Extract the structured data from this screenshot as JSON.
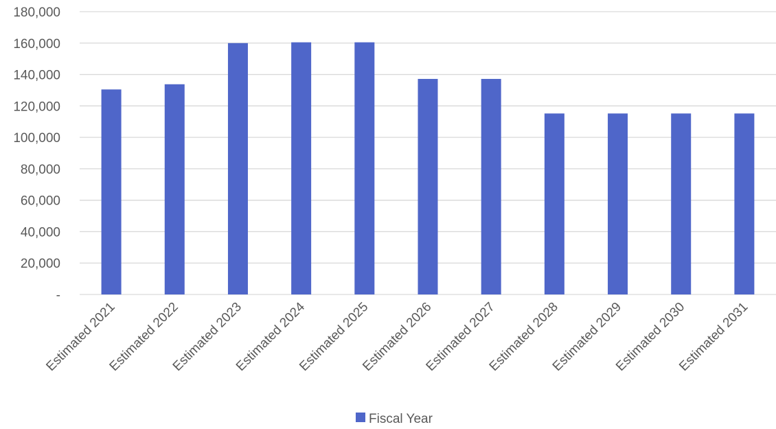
{
  "chart_data": {
    "type": "bar",
    "categories": [
      "Estimated 2021",
      "Estimated 2022",
      "Estimated 2023",
      "Estimated 2024",
      "Estimated 2025",
      "Estimated 2026",
      "Estimated 2027",
      "Estimated 2028",
      "Estimated 2029",
      "Estimated 2030",
      "Estimated 2031"
    ],
    "series": [
      {
        "name": "Fiscal Year",
        "color": "#4f66c9",
        "values": [
          130500,
          133800,
          160000,
          160500,
          160500,
          137200,
          137200,
          115200,
          115200,
          115200,
          115200
        ]
      }
    ],
    "title": "",
    "xlabel": "",
    "ylabel": "",
    "ylim": [
      0,
      180000
    ],
    "yticks": [
      0,
      20000,
      40000,
      60000,
      80000,
      100000,
      120000,
      140000,
      160000,
      180000
    ],
    "ytick_labels": [
      "-",
      "20,000",
      "40,000",
      "60,000",
      "80,000",
      "100,000",
      "120,000",
      "140,000",
      "160,000",
      "180,000"
    ],
    "grid": true,
    "legend_position": "bottom"
  }
}
